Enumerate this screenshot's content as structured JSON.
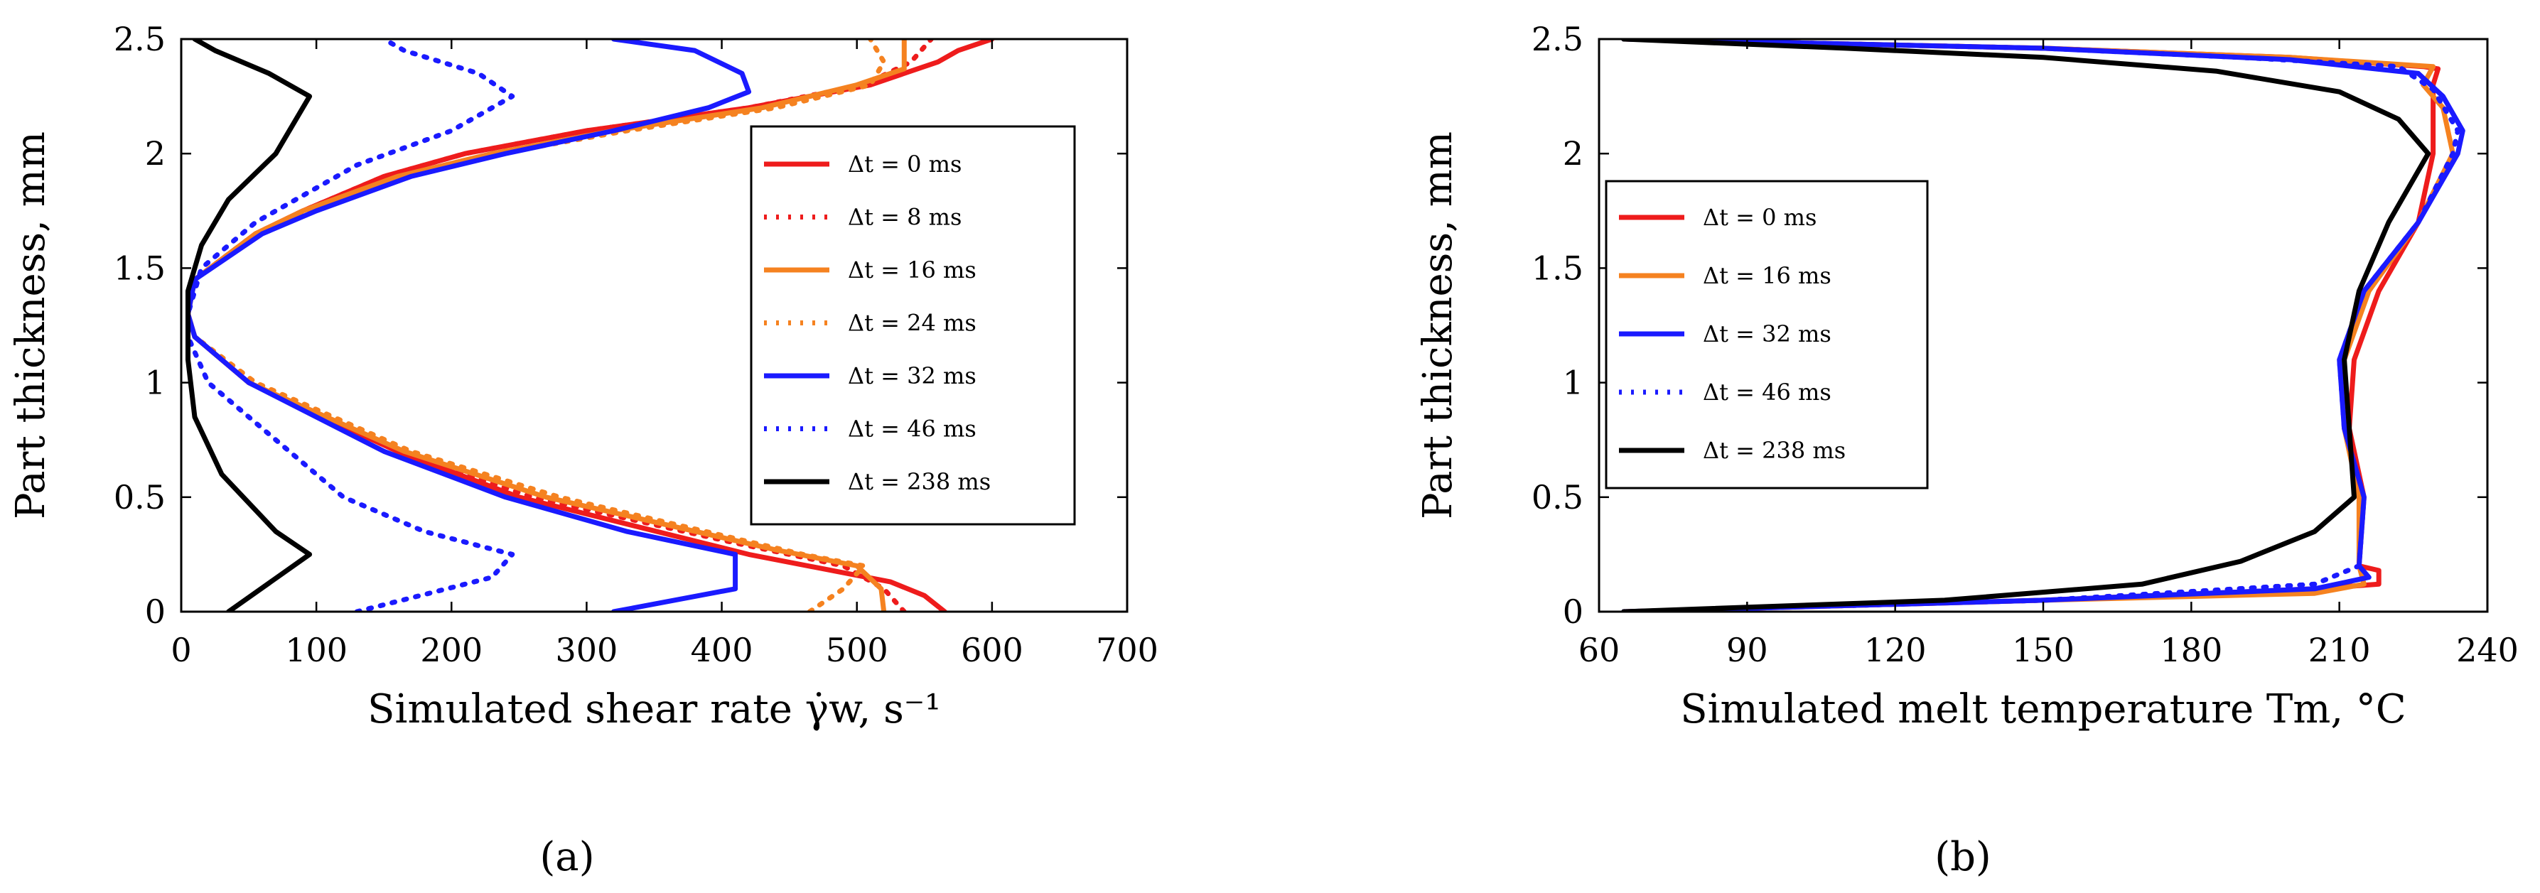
{
  "panels": [
    {
      "label": "(a)"
    },
    {
      "label": "(b)"
    }
  ],
  "chart_data": [
    {
      "type": "line",
      "panel": "(a)",
      "title": "",
      "xlabel": "Simulated shear rate γ̇w, s⁻¹",
      "ylabel": "Part thickness, mm",
      "xlim": [
        0,
        700
      ],
      "ylim": [
        0,
        2.5
      ],
      "x_ticks": [
        "0",
        "100",
        "200",
        "300",
        "400",
        "500",
        "600",
        "700"
      ],
      "y_ticks": [
        "0",
        "0.5",
        "1",
        "1.5",
        "2",
        "2.5"
      ],
      "legend_position": "right",
      "series": [
        {
          "name": "Δt = 0 ms",
          "color": "#ee1c1c",
          "dash": "solid",
          "points": [
            [
              565,
              0
            ],
            [
              550,
              0.07
            ],
            [
              525,
              0.13
            ],
            [
              420,
              0.25
            ],
            [
              250,
              0.5
            ],
            [
              160,
              0.7
            ],
            [
              50,
              1.0
            ],
            [
              10,
              1.2
            ],
            [
              5,
              1.3
            ],
            [
              10,
              1.45
            ],
            [
              55,
              1.65
            ],
            [
              90,
              1.75
            ],
            [
              150,
              1.9
            ],
            [
              210,
              2.0
            ],
            [
              300,
              2.1
            ],
            [
              420,
              2.2
            ],
            [
              510,
              2.3
            ],
            [
              560,
              2.4
            ],
            [
              575,
              2.45
            ],
            [
              600,
              2.5
            ]
          ]
        },
        {
          "name": "Δt = 8 ms",
          "color": "#ee1c1c",
          "dash": "dot",
          "points": [
            [
              535,
              0
            ],
            [
              520,
              0.1
            ],
            [
              490,
              0.2
            ],
            [
              410,
              0.3
            ],
            [
              260,
              0.5
            ],
            [
              160,
              0.7
            ],
            [
              50,
              1.0
            ],
            [
              10,
              1.2
            ],
            [
              5,
              1.3
            ],
            [
              10,
              1.45
            ],
            [
              55,
              1.65
            ],
            [
              90,
              1.75
            ],
            [
              150,
              1.9
            ],
            [
              210,
              2.0
            ],
            [
              300,
              2.1
            ],
            [
              420,
              2.2
            ],
            [
              505,
              2.3
            ],
            [
              540,
              2.4
            ],
            [
              555,
              2.5
            ]
          ]
        },
        {
          "name": "Δt = 16 ms",
          "color": "#f58220",
          "dash": "solid",
          "points": [
            [
              520,
              0
            ],
            [
              518,
              0.1
            ],
            [
              500,
              0.2
            ],
            [
              440,
              0.27
            ],
            [
              270,
              0.5
            ],
            [
              165,
              0.7
            ],
            [
              50,
              1.0
            ],
            [
              10,
              1.2
            ],
            [
              5,
              1.3
            ],
            [
              10,
              1.45
            ],
            [
              55,
              1.65
            ],
            [
              90,
              1.75
            ],
            [
              160,
              1.9
            ],
            [
              230,
              2.0
            ],
            [
              320,
              2.1
            ],
            [
              430,
              2.2
            ],
            [
              500,
              2.3
            ],
            [
              535,
              2.37
            ],
            [
              535,
              2.5
            ]
          ]
        },
        {
          "name": "Δt = 24 ms",
          "color": "#f58220",
          "dash": "dot",
          "points": [
            [
              465,
              0
            ],
            [
              490,
              0.1
            ],
            [
              505,
              0.2
            ],
            [
              460,
              0.25
            ],
            [
              280,
              0.5
            ],
            [
              170,
              0.7
            ],
            [
              55,
              1.0
            ],
            [
              10,
              1.2
            ],
            [
              5,
              1.3
            ],
            [
              10,
              1.45
            ],
            [
              55,
              1.65
            ],
            [
              95,
              1.75
            ],
            [
              165,
              1.9
            ],
            [
              235,
              2.0
            ],
            [
              330,
              2.1
            ],
            [
              440,
              2.2
            ],
            [
              510,
              2.3
            ],
            [
              520,
              2.4
            ],
            [
              510,
              2.5
            ]
          ]
        },
        {
          "name": "Δt = 32 ms",
          "color": "#1a1aff",
          "dash": "solid",
          "points": [
            [
              320,
              0
            ],
            [
              410,
              0.1
            ],
            [
              410,
              0.25
            ],
            [
              330,
              0.35
            ],
            [
              240,
              0.5
            ],
            [
              150,
              0.7
            ],
            [
              50,
              1.0
            ],
            [
              10,
              1.2
            ],
            [
              5,
              1.3
            ],
            [
              10,
              1.45
            ],
            [
              60,
              1.65
            ],
            [
              100,
              1.75
            ],
            [
              170,
              1.9
            ],
            [
              240,
              2.0
            ],
            [
              320,
              2.1
            ],
            [
              390,
              2.2
            ],
            [
              420,
              2.27
            ],
            [
              415,
              2.35
            ],
            [
              380,
              2.45
            ],
            [
              320,
              2.5
            ]
          ]
        },
        {
          "name": "Δt = 46 ms",
          "color": "#1a1aff",
          "dash": "dot",
          "points": [
            [
              130,
              0
            ],
            [
              230,
              0.15
            ],
            [
              245,
              0.25
            ],
            [
              180,
              0.35
            ],
            [
              120,
              0.5
            ],
            [
              60,
              0.8
            ],
            [
              20,
              1.0
            ],
            [
              5,
              1.2
            ],
            [
              5,
              1.3
            ],
            [
              15,
              1.5
            ],
            [
              55,
              1.7
            ],
            [
              130,
              1.95
            ],
            [
              200,
              2.1
            ],
            [
              245,
              2.25
            ],
            [
              220,
              2.35
            ],
            [
              165,
              2.45
            ],
            [
              150,
              2.5
            ]
          ]
        },
        {
          "name": "Δt = 238 ms",
          "color": "#000000",
          "dash": "solid",
          "points": [
            [
              35,
              0
            ],
            [
              95,
              0.25
            ],
            [
              70,
              0.35
            ],
            [
              30,
              0.6
            ],
            [
              10,
              0.85
            ],
            [
              5,
              1.1
            ],
            [
              5,
              1.4
            ],
            [
              15,
              1.6
            ],
            [
              35,
              1.8
            ],
            [
              70,
              2.0
            ],
            [
              95,
              2.25
            ],
            [
              65,
              2.35
            ],
            [
              25,
              2.45
            ],
            [
              10,
              2.5
            ]
          ]
        }
      ]
    },
    {
      "type": "line",
      "panel": "(b)",
      "title": "",
      "xlabel": "Simulated melt temperature Tm, °C",
      "ylabel": "Part thickness, mm",
      "xlim": [
        60,
        240
      ],
      "ylim": [
        0,
        2.5
      ],
      "x_ticks": [
        "60",
        "90",
        "120",
        "150",
        "180",
        "210",
        "240"
      ],
      "y_ticks": [
        "0",
        "0.5",
        "1",
        "1.5",
        "2",
        "2.5"
      ],
      "legend_position": "top-left",
      "series": [
        {
          "name": "Δt = 0 ms",
          "color": "#ee1c1c",
          "dash": "solid",
          "points": [
            [
              65,
              0
            ],
            [
              150,
              0.05
            ],
            [
              205,
              0.1
            ],
            [
              218,
              0.12
            ],
            [
              218,
              0.18
            ],
            [
              214,
              0.2
            ],
            [
              215,
              0.5
            ],
            [
              212,
              0.8
            ],
            [
              213,
              1.1
            ],
            [
              218,
              1.4
            ],
            [
              226,
              1.7
            ],
            [
              229,
              2.0
            ],
            [
              229,
              2.3
            ],
            [
              230,
              2.37
            ],
            [
              227,
              2.38
            ],
            [
              200,
              2.42
            ],
            [
              150,
              2.46
            ],
            [
              65,
              2.5
            ]
          ]
        },
        {
          "name": "Δt = 16 ms",
          "color": "#f58220",
          "dash": "solid",
          "points": [
            [
              65,
              0
            ],
            [
              150,
              0.05
            ],
            [
              205,
              0.08
            ],
            [
              215,
              0.12
            ],
            [
              214,
              0.2
            ],
            [
              214,
              0.5
            ],
            [
              211,
              0.8
            ],
            [
              211,
              1.1
            ],
            [
              216,
              1.4
            ],
            [
              226,
              1.7
            ],
            [
              233,
              2.0
            ],
            [
              231,
              2.2
            ],
            [
              227,
              2.3
            ],
            [
              229,
              2.38
            ],
            [
              200,
              2.42
            ],
            [
              150,
              2.46
            ],
            [
              65,
              2.5
            ]
          ]
        },
        {
          "name": "Δt = 32 ms",
          "color": "#1a1aff",
          "dash": "solid",
          "points": [
            [
              65,
              0
            ],
            [
              150,
              0.05
            ],
            [
              205,
              0.1
            ],
            [
              216,
              0.15
            ],
            [
              214,
              0.2
            ],
            [
              215,
              0.5
            ],
            [
              211,
              0.8
            ],
            [
              210,
              1.1
            ],
            [
              215,
              1.4
            ],
            [
              226,
              1.7
            ],
            [
              234,
              2.0
            ],
            [
              235,
              2.1
            ],
            [
              231,
              2.25
            ],
            [
              226,
              2.35
            ],
            [
              200,
              2.41
            ],
            [
              150,
              2.46
            ],
            [
              65,
              2.5
            ]
          ]
        },
        {
          "name": "Δt = 46 ms",
          "color": "#1a1aff",
          "dash": "dot",
          "points": [
            [
              65,
              0
            ],
            [
              150,
              0.05
            ],
            [
              205,
              0.12
            ],
            [
              214,
              0.2
            ],
            [
              215,
              0.5
            ],
            [
              211,
              0.8
            ],
            [
              210,
              1.1
            ],
            [
              215,
              1.4
            ],
            [
              226,
              1.7
            ],
            [
              233,
              2.0
            ],
            [
              234,
              2.1
            ],
            [
              229,
              2.28
            ],
            [
              222,
              2.38
            ],
            [
              190,
              2.42
            ],
            [
              150,
              2.46
            ],
            [
              65,
              2.5
            ]
          ]
        },
        {
          "name": "Δt = 238 ms",
          "color": "#000000",
          "dash": "solid",
          "points": [
            [
              65,
              0
            ],
            [
              130,
              0.05
            ],
            [
              170,
              0.12
            ],
            [
              190,
              0.22
            ],
            [
              205,
              0.35
            ],
            [
              213,
              0.5
            ],
            [
              212,
              0.8
            ],
            [
              211,
              1.1
            ],
            [
              214,
              1.4
            ],
            [
              220,
              1.7
            ],
            [
              228,
              2.0
            ],
            [
              222,
              2.15
            ],
            [
              210,
              2.27
            ],
            [
              185,
              2.36
            ],
            [
              150,
              2.42
            ],
            [
              110,
              2.46
            ],
            [
              65,
              2.5
            ]
          ]
        }
      ]
    }
  ]
}
